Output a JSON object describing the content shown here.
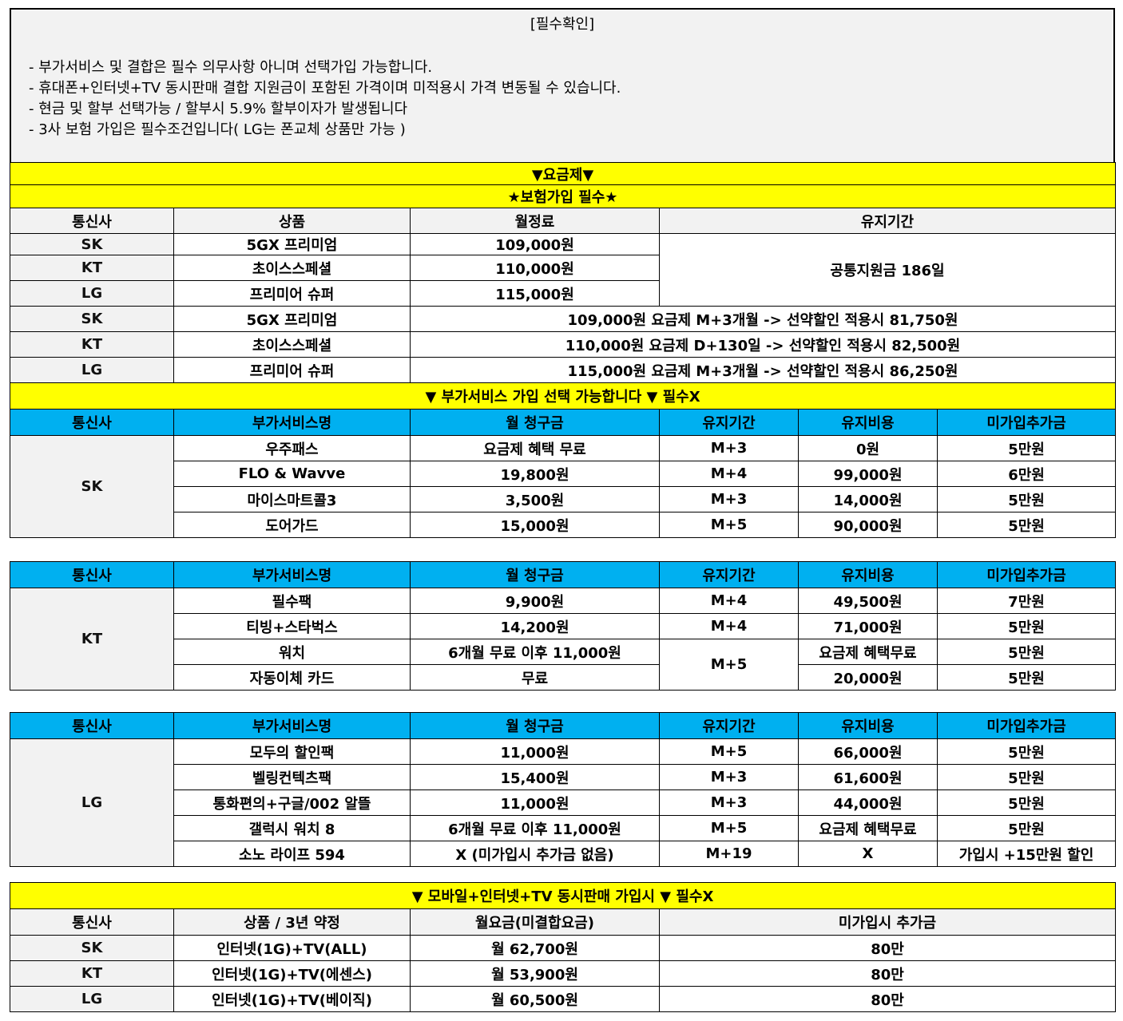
{
  "colors": {
    "banner": "#ffff00",
    "header_blue": "#00b0f0",
    "header_gray": "#f2f2f2"
  },
  "notice": {
    "title": "[필수확인]",
    "lines": [
      "- 부가서비스 및 결합은 필수 의무사항 아니며 선택가입 가능합니다.",
      "- 휴대폰+인터넷+TV 동시판매 결합 지원금이 포함된 가격이며 미적용시 가격 변동될 수 있습니다.",
      "- 현금 및 할부 선택가능 / 할부시 5.9% 할부이자가 발생됩니다",
      "- 3사 보험 가입은 필수조건입니다( LG는 폰교체 상품만 가능 )"
    ]
  },
  "plan": {
    "banner1": "▼요금제▼",
    "banner2": "★보험가입 필수★",
    "headers": [
      "통신사",
      "상품",
      "월정료",
      "유지기간"
    ],
    "rows": [
      [
        "SK",
        "5GX 프리미엄",
        "109,000원"
      ],
      [
        "KT",
        "초이스스페셜",
        "110,000원"
      ],
      [
        "LG",
        "프리미어 슈퍼",
        "115,000원"
      ]
    ],
    "common_period": "공통지원금 186일",
    "discount_rows": [
      [
        "SK",
        "5GX 프리미엄",
        "109,000원 요금제 M+3개월 -> 선약할인 적용시 81,750원"
      ],
      [
        "KT",
        "초이스스페셜",
        "110,000원 요금제 D+130일 -> 선약할인 적용시 82,500원"
      ],
      [
        "LG",
        "프리미어 슈퍼",
        "115,000원 요금제 M+3개월 -> 선약할인 적용시 86,250원"
      ]
    ]
  },
  "addons": {
    "banner": "▼ 부가서비스 가입 선택 가능합니다 ▼ 필수X",
    "headers": [
      "통신사",
      "부가서비스명",
      "월 청구금",
      "유지기간",
      "유지비용",
      "미가입추가금"
    ],
    "groups": [
      {
        "carrier": "SK",
        "rows": [
          [
            "우주패스",
            "요금제 혜택 무료",
            "M+3",
            "0원",
            "5만원"
          ],
          [
            "FLO & Wavve",
            "19,800원",
            "M+4",
            "99,000원",
            "6만원"
          ],
          [
            "마이스마트콜3",
            "3,500원",
            "M+3",
            "14,000원",
            "5만원"
          ],
          [
            "도어가드",
            "15,000원",
            "M+5",
            "90,000원",
            "5만원"
          ]
        ]
      },
      {
        "carrier": "KT",
        "rows": [
          [
            "필수팩",
            "9,900원",
            "M+4",
            "49,500원",
            "7만원"
          ],
          [
            "티빙+스타벅스",
            "14,200원",
            "M+4",
            "71,000원",
            "5만원"
          ],
          [
            "워치",
            "6개월 무료 이후 11,000원",
            "M+5",
            "요금제 혜택무료",
            "5만원"
          ],
          [
            "자동이체 카드",
            "무료",
            "",
            "20,000원",
            "5만원"
          ]
        ]
      },
      {
        "carrier": "LG",
        "rows": [
          [
            "모두의 할인팩",
            "11,000원",
            "M+5",
            "66,000원",
            "5만원"
          ],
          [
            "벨링컨텍츠팩",
            "15,400원",
            "M+3",
            "61,600원",
            "5만원"
          ],
          [
            "통화편의+구글/002 알뜰",
            "11,000원",
            "M+3",
            "44,000원",
            "5만원"
          ],
          [
            "갤럭시 워치 8",
            "6개월 무료 이후 11,000원",
            "M+5",
            "요금제 혜택무료",
            "5만원"
          ],
          [
            "소노 라이프 594",
            "X (미가입시 추가금 없음)",
            "M+19",
            "X",
            "가입시 +15만원 할인"
          ]
        ]
      }
    ]
  },
  "bundle": {
    "banner": "▼ 모바일+인터넷+TV 동시판매 가입시 ▼ 필수X",
    "headers": [
      "통신사",
      "상품 / 3년 약정",
      "월요금(미결합요금)",
      "미가입시 추가금"
    ],
    "rows": [
      [
        "SK",
        "인터넷(1G)+TV(ALL)",
        "월 62,700원",
        "80만"
      ],
      [
        "KT",
        "인터넷(1G)+TV(에센스)",
        "월 53,900원",
        "80만"
      ],
      [
        "LG",
        "인터넷(1G)+TV(베이직)",
        "월 60,500원",
        "80만"
      ]
    ]
  }
}
